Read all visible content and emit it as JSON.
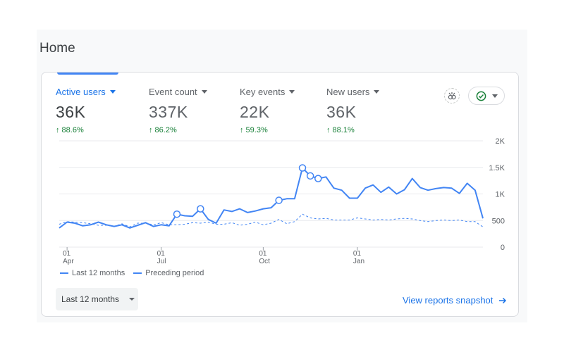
{
  "page": {
    "title": "Home"
  },
  "metrics": [
    {
      "label": "Active users",
      "value": "36K",
      "change": "↑ 88.6%"
    },
    {
      "label": "Event count",
      "value": "337K",
      "change": "↑ 86.2%"
    },
    {
      "label": "Key events",
      "value": "22K",
      "change": "↑ 59.3%"
    },
    {
      "label": "New users",
      "value": "36K",
      "change": "↑ 88.1%"
    }
  ],
  "icons": {
    "insights": "insights-icon",
    "compare": "check-circle-icon"
  },
  "colors": {
    "accent": "#1a73e8",
    "series": "#4285f4",
    "positive": "#188038"
  },
  "legend": {
    "current": "Last 12 months",
    "previous": "Preceding period"
  },
  "controls": {
    "date_range": "Last 12 months",
    "view_link": "View reports snapshot"
  },
  "chart_data": {
    "type": "line",
    "x_ticks": [
      {
        "day": "01",
        "month": "Apr"
      },
      {
        "day": "01",
        "month": "Jul"
      },
      {
        "day": "01",
        "month": "Oct"
      },
      {
        "day": "01",
        "month": "Jan"
      }
    ],
    "y_ticks": [
      "2K",
      "1.5K",
      "1K",
      "500",
      "0"
    ],
    "ylim": [
      0,
      2000
    ],
    "grid": true,
    "legend_position": "bottom-left",
    "series": [
      {
        "name": "Last 12 months",
        "style": "solid",
        "values": [
          360,
          470,
          450,
          400,
          420,
          470,
          420,
          390,
          420,
          360,
          410,
          460,
          390,
          420,
          400,
          620,
          590,
          580,
          720,
          520,
          450,
          700,
          670,
          720,
          650,
          680,
          720,
          740,
          880,
          910,
          910,
          1490,
          1340,
          1290,
          1320,
          1110,
          1070,
          920,
          920,
          1110,
          1170,
          1030,
          1130,
          1000,
          1080,
          1290,
          1120,
          1070,
          1100,
          1120,
          1110,
          1010,
          1200,
          1070,
          540
        ],
        "markers": [
          15,
          18,
          28,
          31,
          32,
          33
        ]
      },
      {
        "name": "Preceding period",
        "style": "dashed",
        "values": [
          430,
          480,
          470,
          460,
          440,
          410,
          410,
          390,
          440,
          380,
          450,
          450,
          420,
          460,
          420,
          420,
          430,
          460,
          450,
          470,
          430,
          430,
          460,
          410,
          430,
          470,
          420,
          450,
          520,
          440,
          480,
          620,
          550,
          530,
          540,
          510,
          510,
          510,
          550,
          530,
          510,
          520,
          510,
          530,
          540,
          530,
          500,
          480,
          500,
          510,
          500,
          510,
          480,
          480,
          380
        ]
      }
    ]
  }
}
